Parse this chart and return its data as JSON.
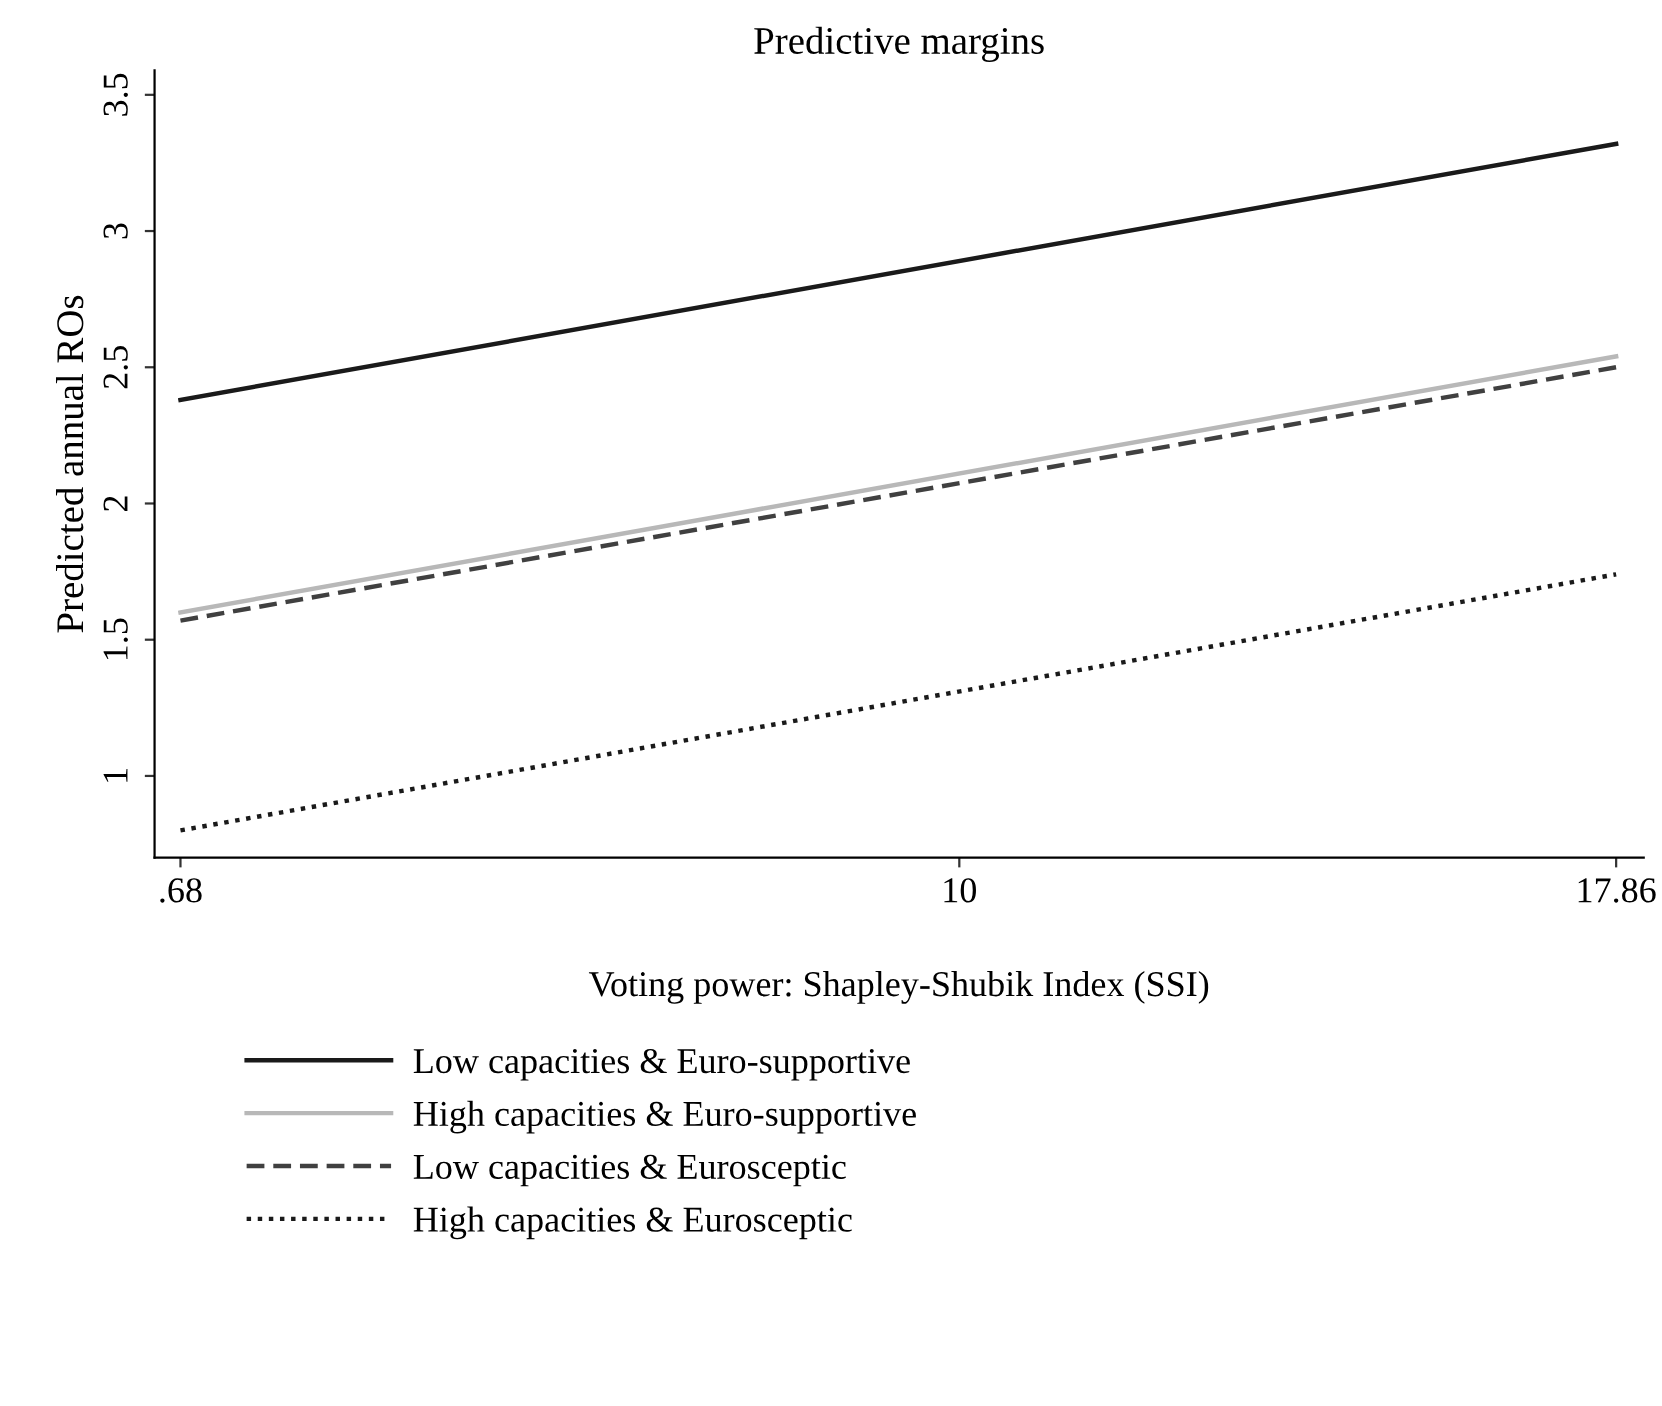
{
  "chart_data": {
    "type": "line",
    "title": "Predictive margins",
    "xlabel": "Voting power: Shapley-Shubik Index (SSI)",
    "ylabel": "Predicted annual ROs",
    "x": [
      0.68,
      17.86
    ],
    "series": [
      {
        "name": "Low capacities & Euro-supportive",
        "color": "#1a1a1a",
        "line_style": "solid",
        "values": [
          2.38,
          3.32
        ]
      },
      {
        "name": "High capacities & Euro-supportive",
        "color": "#b8b8b8",
        "line_style": "solid",
        "values": [
          1.6,
          2.54
        ]
      },
      {
        "name": "Low capacities & Eurosceptic",
        "color": "#404040",
        "line_style": "dashed",
        "values": [
          1.57,
          2.5
        ]
      },
      {
        "name": "High capacities & Eurosceptic",
        "color": "#1a1a1a",
        "line_style": "dotted",
        "values": [
          0.8,
          1.74
        ]
      }
    ],
    "xlim": [
      0.37,
      18.19
    ],
    "ylim": [
      0.7,
      3.59
    ],
    "xticks": [
      {
        "value": 0.68,
        "label": ".68"
      },
      10,
      17.86
    ],
    "yticks": [
      1,
      1.5,
      2,
      2.5,
      3,
      3.5
    ],
    "grid": false,
    "legend": "bottom",
    "marker": "none"
  }
}
